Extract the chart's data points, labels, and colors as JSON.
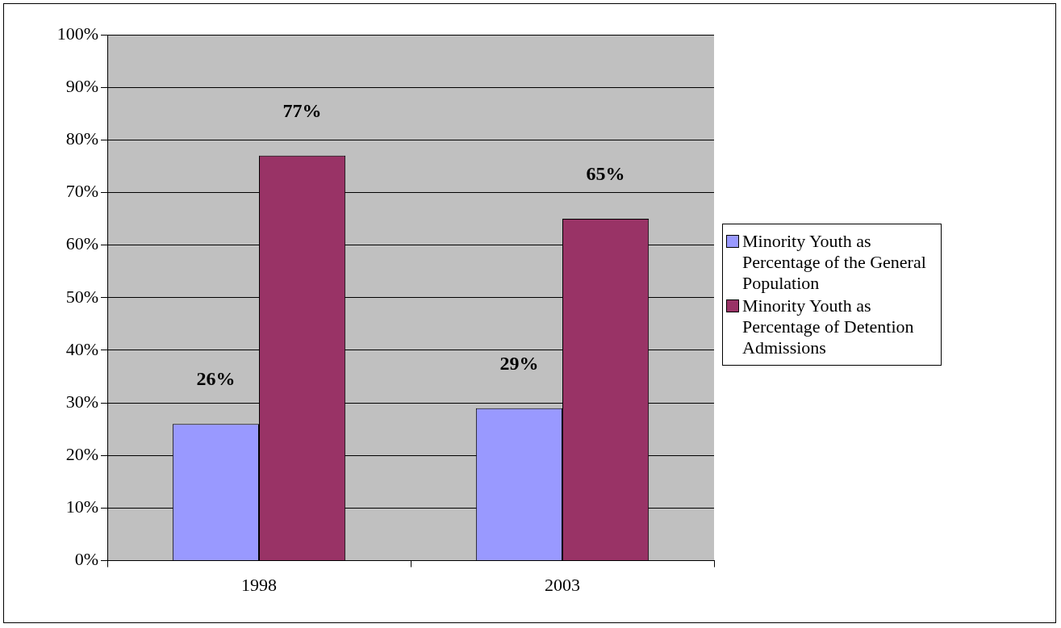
{
  "chart_data": {
    "type": "bar",
    "categories": [
      "1998",
      "2003"
    ],
    "series": [
      {
        "name": "Minority Youth as Percentage of the General Population",
        "color": "#9999ff",
        "values": [
          26,
          29
        ],
        "value_labels": [
          "26%",
          "29%"
        ]
      },
      {
        "name": "Minority Youth as Percentage of Detention Admissions",
        "color": "#993366",
        "values": [
          77,
          65
        ],
        "value_labels": [
          "77%",
          "65%"
        ]
      }
    ],
    "ylim": [
      0,
      100
    ],
    "yticks": [
      {
        "value": 0,
        "label": "0%"
      },
      {
        "value": 10,
        "label": "10%"
      },
      {
        "value": 20,
        "label": "20%"
      },
      {
        "value": 30,
        "label": "30%"
      },
      {
        "value": 40,
        "label": "40%"
      },
      {
        "value": 50,
        "label": "50%"
      },
      {
        "value": 60,
        "label": "60%"
      },
      {
        "value": 70,
        "label": "70%"
      },
      {
        "value": 80,
        "label": "80%"
      },
      {
        "value": 90,
        "label": "90%"
      },
      {
        "value": 100,
        "label": "100%"
      }
    ],
    "grid": "y",
    "legend": "right"
  }
}
